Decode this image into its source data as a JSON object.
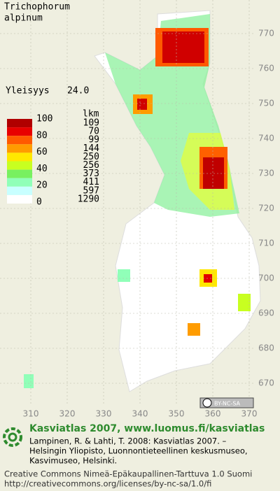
{
  "title": [
    "Trichophorum",
    "alpinum"
  ],
  "frequency": {
    "label": "Yleisyys",
    "value": "24.0"
  },
  "legend": {
    "scale_labels": [
      100,
      80,
      60,
      40,
      20,
      0
    ],
    "count_header": "lkm",
    "counts": [
      109,
      70,
      99,
      144,
      250,
      256,
      373,
      411,
      597,
      1290
    ],
    "colors": [
      "#b00000",
      "#e80000",
      "#ff5a00",
      "#ff9c00",
      "#ffe800",
      "#c8ff20",
      "#78f060",
      "#90ffb8",
      "#c8ffff",
      "#ffffff"
    ]
  },
  "grid": {
    "y_labels": [
      770,
      760,
      750,
      740,
      730,
      720,
      710,
      700,
      690,
      680,
      670
    ],
    "x_labels": [
      310,
      320,
      330,
      340,
      350,
      360,
      370
    ]
  },
  "license_badge": "BY-NC-SA",
  "footer": {
    "heading": "Kasviatlas 2007, www.luomus.fi/kasviatlas",
    "citation": [
      "Lampinen, R. & Lahti, T. 2008: Kasviatlas 2007. –",
      "Helsingin Yliopisto, Luonnontieteellinen keskusmuseo,",
      "Kasvimuseo, Helsinki."
    ],
    "license": [
      "Creative Commons Nimeä-Epäkaupallinen-Tarttuva 1.0 Suomi",
      "http://creativecommons.org/licenses/by-nc-sa/1.0/fi"
    ]
  }
}
